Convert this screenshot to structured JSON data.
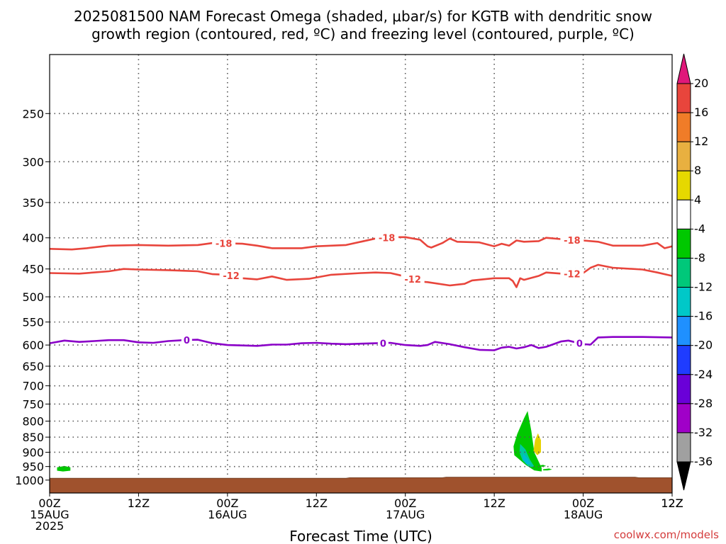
{
  "title_line1": "2025081500 NAM Forecast Omega (shaded, μbar/s) for KGTB with dendritic snow",
  "title_line2": "growth region (contoured, red, ºC) and freezing level (contoured, purple, ºC)",
  "xlabel": "Forecast Time (UTC)",
  "credit": "coolwx.com/models",
  "colors": {
    "dgz": "#e8453c",
    "freezing": "#8a00c8",
    "terrain": "#a0522d",
    "grid": "#555555"
  },
  "chart_data": {
    "type": "time-height cross section",
    "x_ticks": [
      {
        "hour": 0,
        "l1": "00Z",
        "l2": "15AUG",
        "l3": "2025"
      },
      {
        "hour": 12,
        "l1": "12Z",
        "l2": "",
        "l3": ""
      },
      {
        "hour": 24,
        "l1": "00Z",
        "l2": "16AUG",
        "l3": ""
      },
      {
        "hour": 36,
        "l1": "12Z",
        "l2": "",
        "l3": ""
      },
      {
        "hour": 48,
        "l1": "00Z",
        "l2": "17AUG",
        "l3": ""
      },
      {
        "hour": 60,
        "l1": "12Z",
        "l2": "",
        "l3": ""
      },
      {
        "hour": 72,
        "l1": "00Z",
        "l2": "18AUG",
        "l3": ""
      },
      {
        "hour": 84,
        "l1": "12Z",
        "l2": "",
        "l3": ""
      }
    ],
    "xlim_hours": [
      0,
      84
    ],
    "y_ticks": [
      250,
      300,
      350,
      400,
      450,
      500,
      550,
      600,
      650,
      700,
      750,
      800,
      850,
      900,
      950,
      1000
    ],
    "ylim_hPa": [
      1050,
      200
    ],
    "surface_pressure_hPa": [
      [
        0,
        993
      ],
      [
        40,
        993
      ],
      [
        40.5,
        991
      ],
      [
        53,
        991
      ],
      [
        53.5,
        989
      ],
      [
        79,
        989
      ],
      [
        79.5,
        991
      ],
      [
        84,
        991
      ]
    ],
    "contours": [
      {
        "series": "dgz",
        "level": "-18",
        "points": [
          [
            0,
            417
          ],
          [
            3,
            418
          ],
          [
            5,
            416
          ],
          [
            8,
            412
          ],
          [
            12,
            411
          ],
          [
            16,
            412
          ],
          [
            20,
            411
          ],
          [
            22,
            408
          ],
          [
            26,
            409
          ],
          [
            28,
            412
          ],
          [
            30,
            416
          ],
          [
            34,
            416
          ],
          [
            36,
            413
          ],
          [
            38,
            412
          ],
          [
            40,
            411
          ],
          [
            42,
            406
          ],
          [
            44,
            401
          ],
          [
            46,
            399
          ],
          [
            48,
            399
          ],
          [
            50,
            403
          ],
          [
            51,
            413
          ],
          [
            51.5,
            415
          ],
          [
            53,
            408
          ],
          [
            54,
            401
          ],
          [
            55,
            406
          ],
          [
            58,
            407
          ],
          [
            60,
            413
          ],
          [
            61,
            409
          ],
          [
            62,
            412
          ],
          [
            63,
            404
          ],
          [
            64,
            406
          ],
          [
            66,
            405
          ],
          [
            67,
            400
          ],
          [
            70,
            403
          ],
          [
            72,
            404
          ],
          [
            74,
            406
          ],
          [
            76,
            412
          ],
          [
            80,
            412
          ],
          [
            82,
            408
          ],
          [
            83,
            416
          ],
          [
            84,
            413
          ]
        ],
        "labels": [
          [
            23.5,
            "-18"
          ],
          [
            45.5,
            "-18"
          ],
          [
            70.5,
            "-18"
          ]
        ]
      },
      {
        "series": "dgz",
        "level": "-12",
        "points": [
          [
            0,
            457
          ],
          [
            4,
            458
          ],
          [
            8,
            454
          ],
          [
            10,
            450
          ],
          [
            12,
            451
          ],
          [
            16,
            452
          ],
          [
            20,
            454
          ],
          [
            22,
            459
          ],
          [
            24,
            460
          ],
          [
            26,
            466
          ],
          [
            28,
            468
          ],
          [
            30,
            463
          ],
          [
            32,
            469
          ],
          [
            35,
            467
          ],
          [
            38,
            460
          ],
          [
            42,
            457
          ],
          [
            44,
            456
          ],
          [
            46,
            457
          ],
          [
            48,
            463
          ],
          [
            50,
            472
          ],
          [
            51,
            473
          ],
          [
            54,
            479
          ],
          [
            56,
            476
          ],
          [
            57,
            470
          ],
          [
            60,
            466
          ],
          [
            62,
            466
          ],
          [
            62.5,
            471
          ],
          [
            63,
            482
          ],
          [
            63.5,
            466
          ],
          [
            64,
            469
          ],
          [
            66,
            462
          ],
          [
            67,
            456
          ],
          [
            70,
            459
          ],
          [
            72,
            457
          ],
          [
            73,
            448
          ],
          [
            74,
            443
          ],
          [
            76,
            448
          ],
          [
            80,
            451
          ],
          [
            82,
            456
          ],
          [
            84,
            462
          ]
        ],
        "labels": [
          [
            24.5,
            "-12"
          ],
          [
            49,
            "-12"
          ],
          [
            70.5,
            "-12"
          ]
        ]
      },
      {
        "series": "freezing",
        "level": "0",
        "points": [
          [
            0,
            596
          ],
          [
            2,
            590
          ],
          [
            4,
            593
          ],
          [
            6,
            591
          ],
          [
            8,
            589
          ],
          [
            10,
            589
          ],
          [
            12,
            594
          ],
          [
            14,
            595
          ],
          [
            16,
            591
          ],
          [
            18,
            589
          ],
          [
            20,
            588
          ],
          [
            22,
            596
          ],
          [
            24,
            600
          ],
          [
            26,
            601
          ],
          [
            28,
            602
          ],
          [
            30,
            599
          ],
          [
            32,
            599
          ],
          [
            34,
            596
          ],
          [
            36,
            595
          ],
          [
            38,
            597
          ],
          [
            40,
            598
          ],
          [
            42,
            597
          ],
          [
            44,
            596
          ],
          [
            46,
            595
          ],
          [
            48,
            600
          ],
          [
            50,
            602
          ],
          [
            51,
            600
          ],
          [
            52,
            593
          ],
          [
            54,
            598
          ],
          [
            56,
            605
          ],
          [
            58,
            611
          ],
          [
            60,
            612
          ],
          [
            61,
            606
          ],
          [
            62,
            604
          ],
          [
            63,
            608
          ],
          [
            64,
            605
          ],
          [
            65,
            600
          ],
          [
            66,
            607
          ],
          [
            67,
            604
          ],
          [
            68,
            598
          ],
          [
            69,
            592
          ],
          [
            70,
            590
          ],
          [
            72,
            598
          ],
          [
            73,
            599
          ],
          [
            74,
            583
          ],
          [
            76,
            582
          ],
          [
            80,
            582
          ],
          [
            84,
            583
          ]
        ],
        "labels": [
          [
            18.5,
            "0"
          ],
          [
            45,
            "0"
          ],
          [
            71.5,
            "0"
          ]
        ]
      }
    ],
    "omega_shading": [
      {
        "color": "#00c800",
        "points": [
          [
            1,
            953
          ],
          [
            2,
            948
          ],
          [
            2.8,
            953
          ],
          [
            2.8,
            965
          ],
          [
            1.8,
            968
          ],
          [
            1,
            965
          ]
        ]
      },
      {
        "color": "#00c800",
        "points": [
          [
            62.6,
            880
          ],
          [
            63.1,
            840
          ],
          [
            64.0,
            792
          ],
          [
            64.5,
            770
          ],
          [
            65.0,
            830
          ],
          [
            65.4,
            900
          ],
          [
            66.4,
            955
          ],
          [
            66.4,
            968
          ],
          [
            65.4,
            964
          ],
          [
            64.3,
            945
          ],
          [
            62.7,
            910
          ]
        ]
      },
      {
        "color": "#00c8a0",
        "points": [
          [
            63.5,
            872
          ],
          [
            64.2,
            890
          ],
          [
            64.8,
            925
          ],
          [
            65.4,
            950
          ],
          [
            64.7,
            952
          ],
          [
            63.8,
            928
          ],
          [
            63.4,
            900
          ]
        ]
      },
      {
        "color": "#00b8d8",
        "points": [
          [
            63.9,
            905
          ],
          [
            64.5,
            922
          ],
          [
            64.9,
            940
          ],
          [
            64.4,
            942
          ],
          [
            63.9,
            925
          ]
        ]
      },
      {
        "color": "#e6d200",
        "points": [
          [
            65.3,
            895
          ],
          [
            65.5,
            860
          ],
          [
            65.9,
            838
          ],
          [
            66.3,
            860
          ],
          [
            66.3,
            900
          ],
          [
            65.8,
            910
          ]
        ]
      },
      {
        "color": "#00c800",
        "points": [
          [
            66.0,
            946
          ],
          [
            66.6,
            944
          ],
          [
            67.0,
            948
          ],
          [
            66.6,
            951
          ],
          [
            66.0,
            950
          ]
        ]
      },
      {
        "color": "#00c800",
        "points": [
          [
            66.6,
            960
          ],
          [
            67.4,
            957
          ],
          [
            67.8,
            961
          ],
          [
            67.2,
            964
          ],
          [
            66.6,
            964
          ]
        ]
      }
    ],
    "colorbar": {
      "labels": [
        "20",
        "16",
        "12",
        "8",
        "4",
        "-4",
        "-8",
        "-12",
        "-16",
        "-20",
        "-24",
        "-28",
        "-32",
        "-36"
      ],
      "segments": [
        "#e8453c",
        "#f07c28",
        "#e8b040",
        "#e6d800",
        "#ffffff",
        "#00c800",
        "#00c87a",
        "#00c8c8",
        "#1f90ff",
        "#1f3cff",
        "#6a00d8",
        "#a000c8",
        "#a0a0a0"
      ],
      "top_arrow": "#e0187a",
      "bottom_arrow": "#000000"
    }
  }
}
